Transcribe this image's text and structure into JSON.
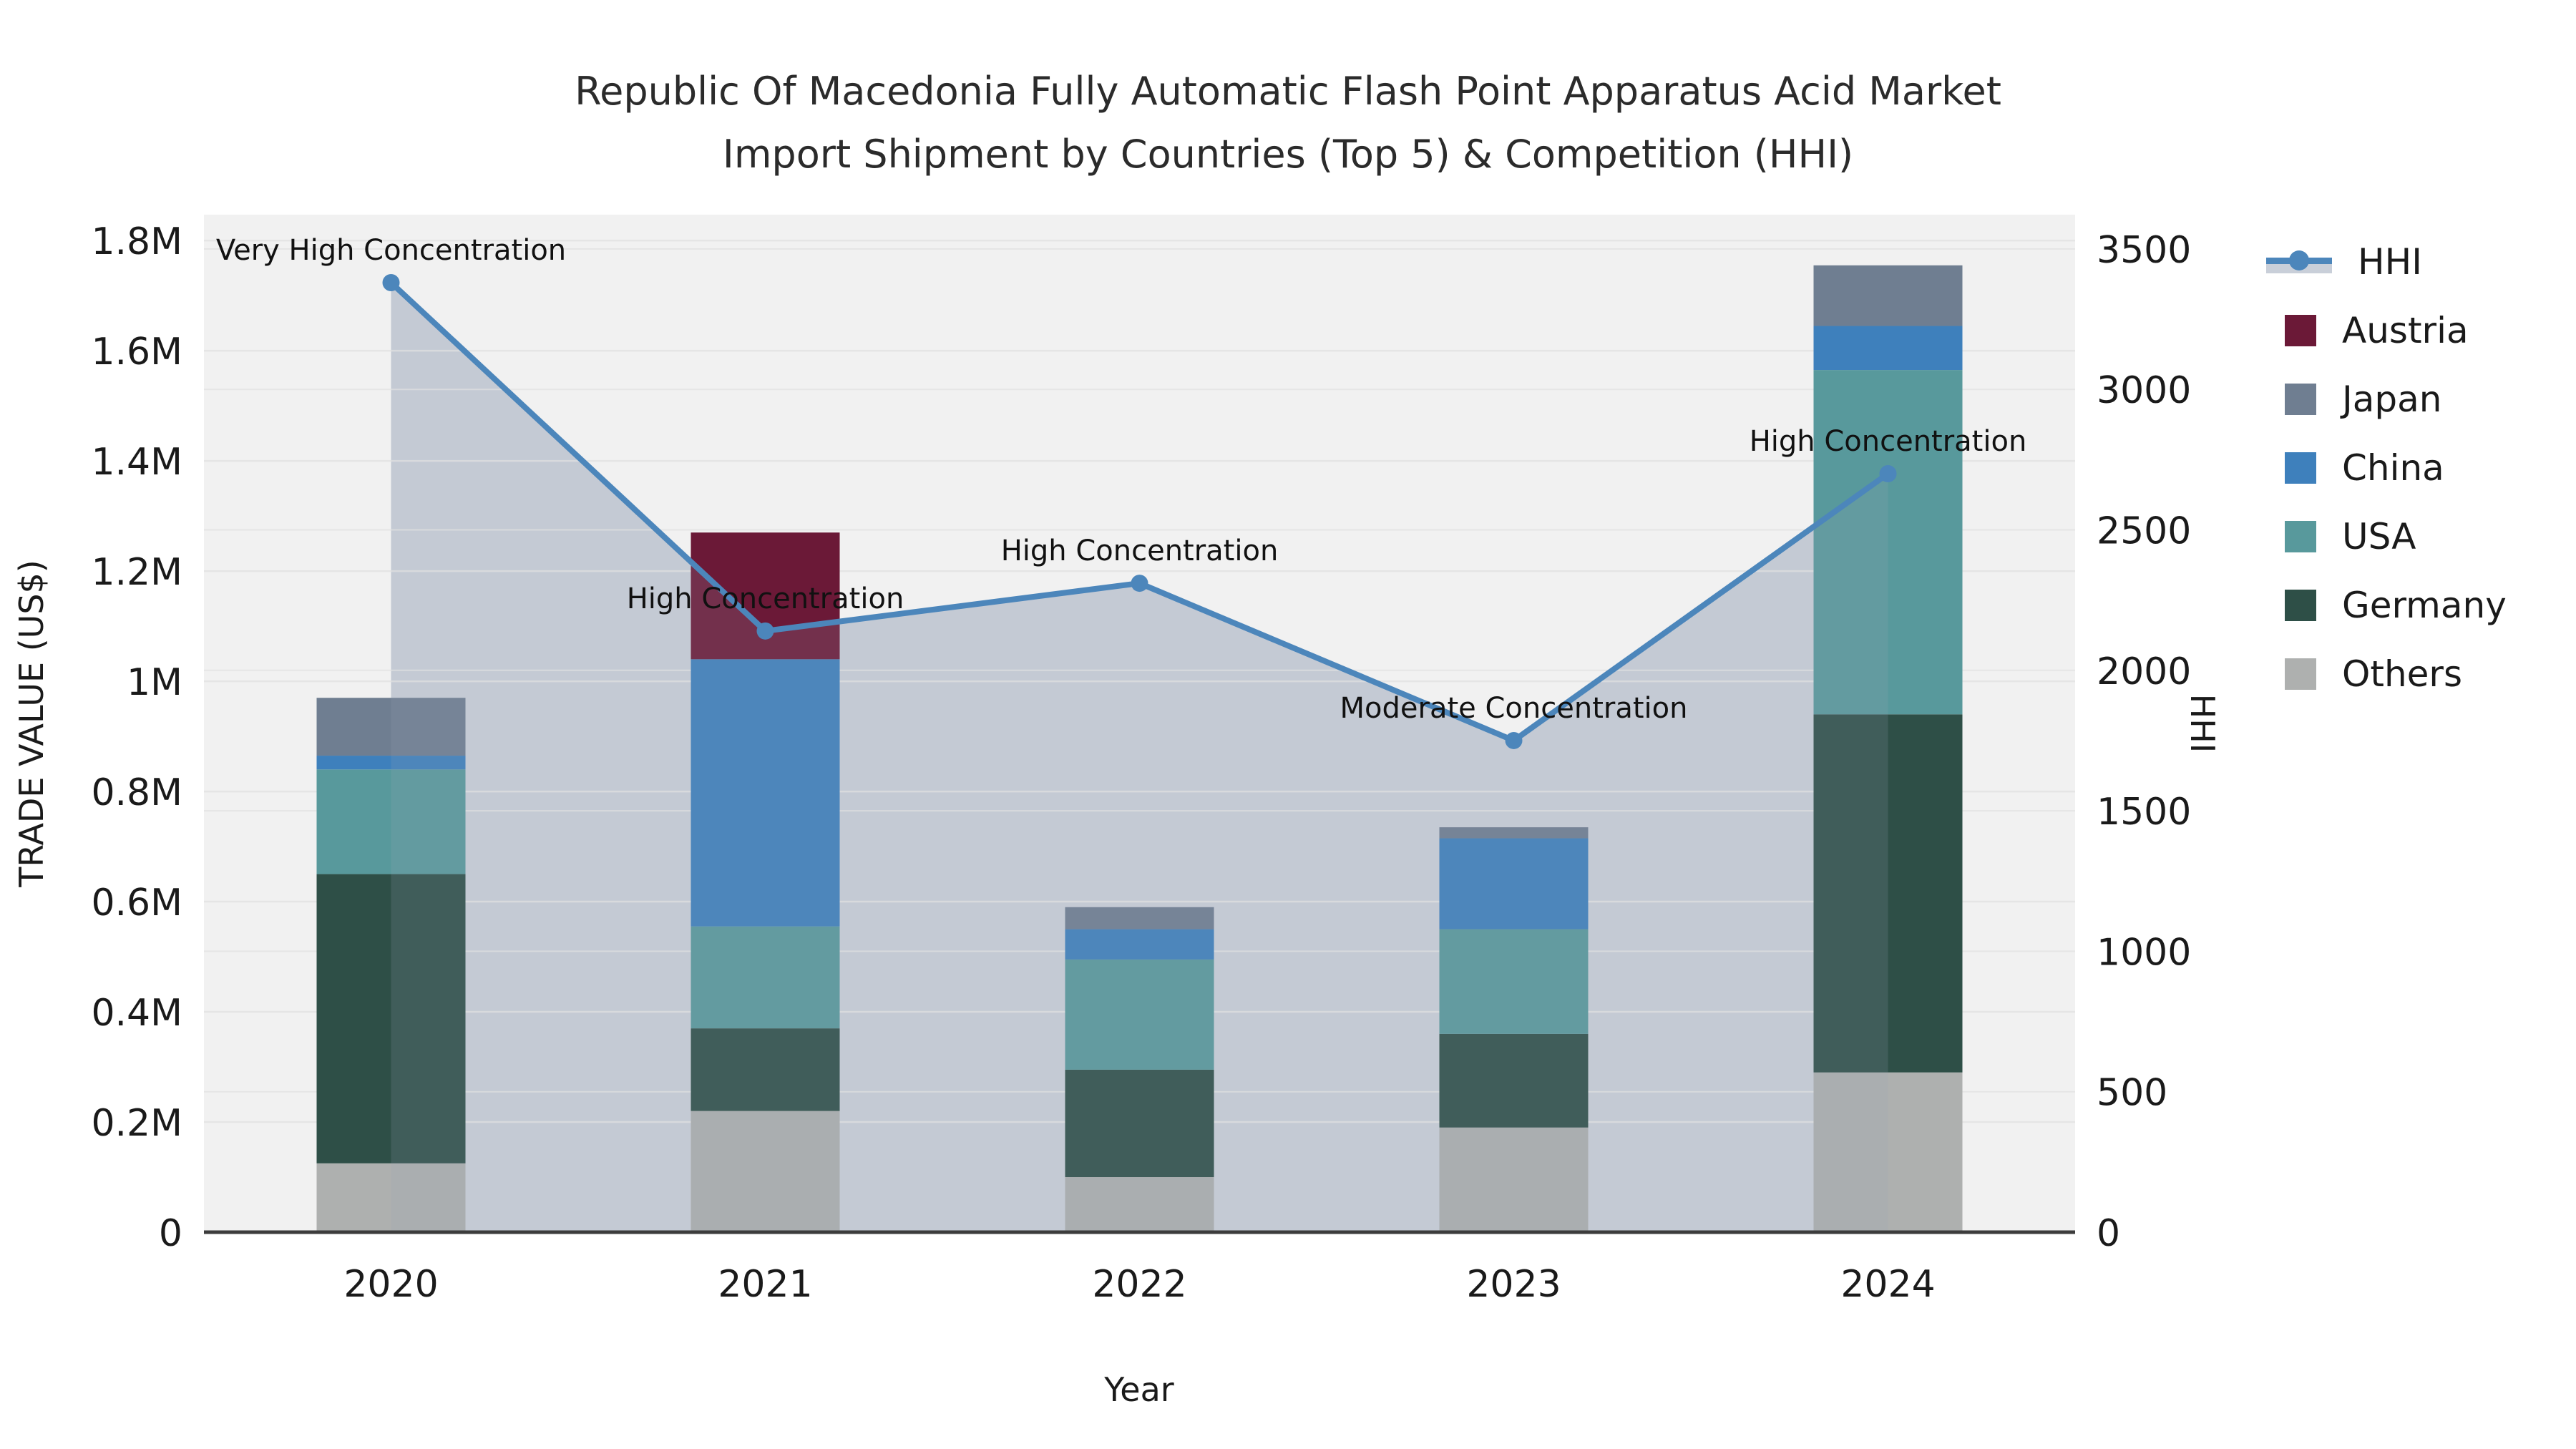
{
  "title": {
    "line1": "Republic Of Macedonia Fully Automatic Flash Point Apparatus Acid Market",
    "line2": "Import Shipment by Countries (Top 5) & Competition (HHI)"
  },
  "axes": {
    "x_title": "Year",
    "y_left_title": "TRADE VALUE (US$)",
    "y_right_title": "HHI"
  },
  "legend": {
    "items": [
      {
        "label": "HHI",
        "type": "line",
        "color": "#4C86BB"
      },
      {
        "label": "Austria",
        "type": "box",
        "color": "#6B1937"
      },
      {
        "label": "Japan",
        "type": "box",
        "color": "#6F7E91"
      },
      {
        "label": "China",
        "type": "box",
        "color": "#3E80BC"
      },
      {
        "label": "USA",
        "type": "box",
        "color": "#58999C"
      },
      {
        "label": "Germany",
        "type": "box",
        "color": "#2E4F47"
      },
      {
        "label": "Others",
        "type": "box",
        "color": "#AEB0AF"
      }
    ]
  },
  "chart_data": {
    "type": [
      "stacked-bar",
      "line"
    ],
    "title": "Republic Of Macedonia Fully Automatic Flash Point Apparatus Acid Market Import Shipment by Countries (Top 5) & Competition (HHI)",
    "xlabel": "Year",
    "ylabel_left": "TRADE VALUE (US$)",
    "ylabel_right": "HHI",
    "categories": [
      "2020",
      "2021",
      "2022",
      "2023",
      "2024"
    ],
    "series": [
      {
        "name": "Austria",
        "color": "#6B1937",
        "values": [
          0,
          230000,
          0,
          0,
          0
        ]
      },
      {
        "name": "Japan",
        "color": "#6F7E91",
        "values": [
          105000,
          0,
          40000,
          20000,
          110000
        ]
      },
      {
        "name": "China",
        "color": "#3E80BC",
        "values": [
          25000,
          485000,
          55000,
          165000,
          80000
        ]
      },
      {
        "name": "USA",
        "color": "#58999C",
        "values": [
          190000,
          185000,
          200000,
          190000,
          625000
        ]
      },
      {
        "name": "Germany",
        "color": "#2E4F47",
        "values": [
          525000,
          150000,
          195000,
          170000,
          650000
        ]
      },
      {
        "name": "Others",
        "color": "#AEB0AF",
        "values": [
          125000,
          220000,
          100000,
          190000,
          290000
        ]
      }
    ],
    "stack_bottom_to_top": [
      "Others",
      "Germany",
      "USA",
      "China",
      "Japan",
      "Austria"
    ],
    "bar_totals": [
      970000,
      1270000,
      590000,
      735000,
      1755000
    ],
    "hhi": {
      "name": "HHI",
      "color": "#4C86BB",
      "area_color": "#9CA8BA",
      "values": [
        3380,
        2140,
        2310,
        1750,
        2700
      ]
    },
    "annotations": [
      {
        "category": "2020",
        "text": "Very High Concentration"
      },
      {
        "category": "2021",
        "text": "High Concentration"
      },
      {
        "category": "2022",
        "text": "High Concentration"
      },
      {
        "category": "2023",
        "text": "Moderate Concentration"
      },
      {
        "category": "2024",
        "text": "High Concentration"
      }
    ],
    "ylim_left": [
      0,
      1847000
    ],
    "ylim_right": [
      0,
      3622
    ],
    "y_left_tick_values": [
      0,
      200000,
      400000,
      600000,
      800000,
      1000000,
      1200000,
      1400000,
      1600000,
      1800000
    ],
    "y_left_tick_labels": [
      "0",
      "0.2M",
      "0.4M",
      "0.6M",
      "0.8M",
      "1M",
      "1.2M",
      "1.4M",
      "1.6M",
      "1.8M"
    ],
    "y_right_tick_values": [
      0,
      500,
      1000,
      1500,
      2000,
      2500,
      3000,
      3500
    ],
    "y_right_tick_labels": [
      "0",
      "500",
      "1000",
      "1500",
      "2000",
      "2500",
      "3000",
      "3500"
    ],
    "legend_position": "right",
    "grid": true
  }
}
